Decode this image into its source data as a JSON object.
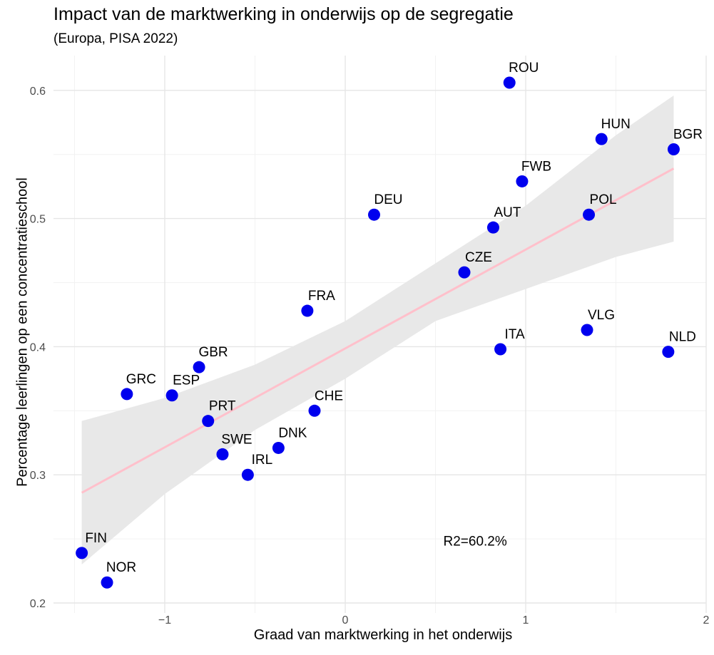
{
  "chart_data": {
    "type": "scatter",
    "title": "Impact van de marktwerking in onderwijs op de segregatie",
    "subtitle": "(Europa, PISA 2022)",
    "xlabel": "Graad van marktwerking in het onderwijs",
    "ylabel": "Percentage leerlingen op een concentratieschool",
    "xlim": [
      -1.5,
      2
    ],
    "ylim": [
      0.2,
      0.61
    ],
    "x_ticks": [
      -1,
      0,
      1,
      2
    ],
    "y_ticks": [
      0.2,
      0.3,
      0.4,
      0.5,
      0.6
    ],
    "x_tick_labels": [
      "−1",
      "0",
      "1",
      "2"
    ],
    "y_tick_labels": [
      "0.2",
      "0.3",
      "0.4",
      "0.5",
      "0.6"
    ],
    "grid": true,
    "points": [
      {
        "label": "ROU",
        "x": 0.91,
        "y": 0.606
      },
      {
        "label": "HUN",
        "x": 1.42,
        "y": 0.562
      },
      {
        "label": "BGR",
        "x": 1.82,
        "y": 0.554
      },
      {
        "label": "FWB",
        "x": 0.98,
        "y": 0.529
      },
      {
        "label": "DEU",
        "x": 0.16,
        "y": 0.503
      },
      {
        "label": "POL",
        "x": 1.35,
        "y": 0.503
      },
      {
        "label": "AUT",
        "x": 0.82,
        "y": 0.493
      },
      {
        "label": "CZE",
        "x": 0.66,
        "y": 0.458
      },
      {
        "label": "FRA",
        "x": -0.21,
        "y": 0.428
      },
      {
        "label": "VLG",
        "x": 1.34,
        "y": 0.413
      },
      {
        "label": "ITA",
        "x": 0.86,
        "y": 0.398
      },
      {
        "label": "NLD",
        "x": 1.79,
        "y": 0.396
      },
      {
        "label": "GBR",
        "x": -0.81,
        "y": 0.384
      },
      {
        "label": "GRC",
        "x": -1.21,
        "y": 0.363
      },
      {
        "label": "ESP",
        "x": -0.96,
        "y": 0.362
      },
      {
        "label": "CHE",
        "x": -0.17,
        "y": 0.35
      },
      {
        "label": "PRT",
        "x": -0.76,
        "y": 0.342
      },
      {
        "label": "DNK",
        "x": -0.37,
        "y": 0.321
      },
      {
        "label": "SWE",
        "x": -0.68,
        "y": 0.316
      },
      {
        "label": "IRL",
        "x": -0.54,
        "y": 0.3
      },
      {
        "label": "FIN",
        "x": -1.46,
        "y": 0.239
      },
      {
        "label": "NOR",
        "x": -1.32,
        "y": 0.216
      }
    ],
    "trend_line": {
      "x": [
        -1.46,
        1.82
      ],
      "y": [
        0.286,
        0.539
      ]
    },
    "confidence_band": {
      "x": [
        -1.46,
        -1.0,
        -0.5,
        0.0,
        0.5,
        1.0,
        1.5,
        1.82
      ],
      "lower": [
        0.23,
        0.285,
        0.335,
        0.375,
        0.42,
        0.445,
        0.47,
        0.482
      ],
      "upper": [
        0.342,
        0.36,
        0.386,
        0.42,
        0.465,
        0.51,
        0.565,
        0.596
      ]
    },
    "point_color": "#0000ee",
    "trend_color": "#ffc0cb",
    "band_color": "#e8e8e8",
    "annotation": {
      "text": "R2=60.2%",
      "x": 0.72,
      "y": 0.248
    }
  }
}
